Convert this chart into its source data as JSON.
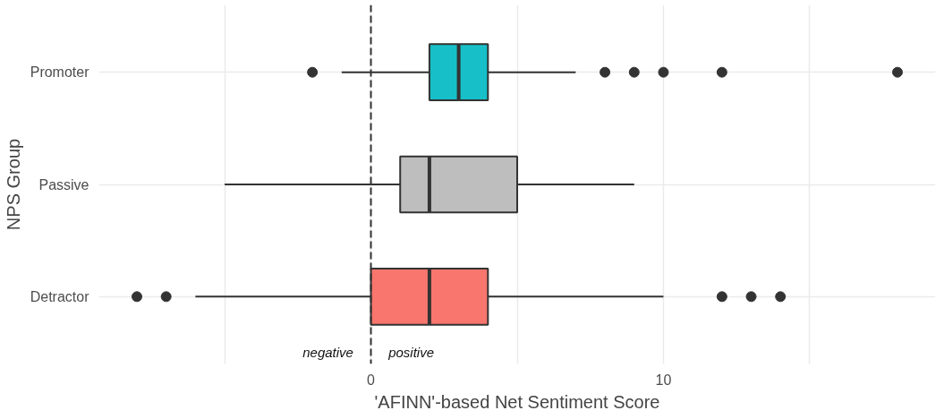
{
  "chart_data": {
    "type": "box",
    "orientation": "horizontal",
    "xlabel": "'AFINN'-based Net Sentiment Score",
    "ylabel": "NPS Group",
    "categories": [
      "Promoter",
      "Passive",
      "Detractor"
    ],
    "colors": [
      "#17c0c8",
      "#bebebe",
      "#f8766d"
    ],
    "boxes": [
      {
        "low": -1,
        "q1": 2,
        "median": 3,
        "q3": 4,
        "high": 7,
        "outliers": [
          -2,
          8,
          9,
          10,
          12,
          18
        ]
      },
      {
        "low": -5,
        "q1": 1,
        "median": 2,
        "q3": 5,
        "high": 9
      },
      {
        "low": -6,
        "q1": 0,
        "median": 2,
        "q3": 4,
        "high": 10,
        "outliers": [
          -8,
          -7,
          12,
          13,
          14
        ]
      }
    ],
    "xlim": [
      -9.3,
      19.3
    ],
    "xticks": [
      {
        "value": -5,
        "label": null
      },
      0,
      {
        "value": 5,
        "label": null
      },
      10,
      {
        "value": 15,
        "label": null
      }
    ],
    "grid": true,
    "ref_lines": [
      {
        "axis": "x",
        "value": 0,
        "label": null,
        "line_style": "dashed",
        "color": "#333333"
      }
    ],
    "annotations": [
      "negative",
      "positive"
    ]
  }
}
